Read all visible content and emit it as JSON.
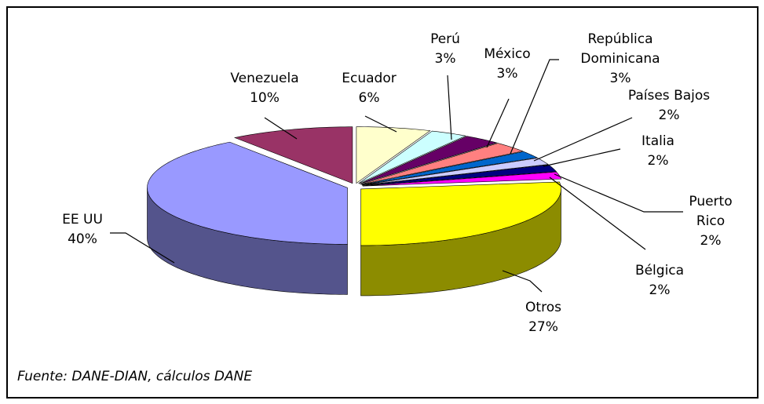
{
  "chart_data": {
    "type": "pie3d",
    "categories": [
      "Ecuador",
      "Perú",
      "México",
      "República Dominicana",
      "Países Bajos",
      "Italia",
      "Puerto Rico",
      "Bélgica",
      "Otros",
      "EE UU",
      "Venezuela"
    ],
    "values": [
      6,
      3,
      3,
      3,
      2,
      2,
      2,
      2,
      27,
      40,
      10
    ],
    "value_labels": [
      "6%",
      "3%",
      "3%",
      "3%",
      "2%",
      "2%",
      "2%",
      "2%",
      "27%",
      "40%",
      "10%"
    ],
    "colors": [
      "#ffffcc",
      "#ccffff",
      "#660066",
      "#ff8080",
      "#0066cc",
      "#ccccff",
      "#000080",
      "#ff00ff",
      "#ffff00",
      "#9999ff",
      "#993366"
    ],
    "note": "Fuente: DANE-DIAN, cálculos DANE"
  }
}
